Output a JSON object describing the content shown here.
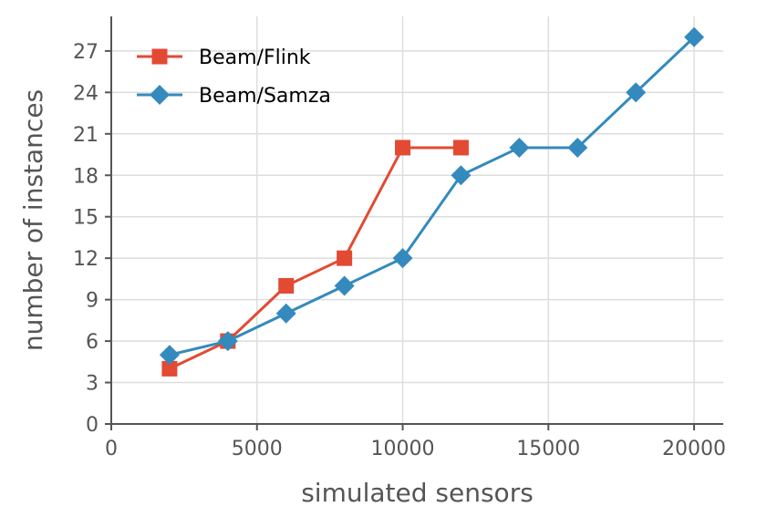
{
  "chart_data": {
    "type": "line",
    "title": "",
    "xlabel": "simulated sensors",
    "ylabel": "number of instances",
    "xlim": [
      0,
      21000
    ],
    "ylim": [
      0,
      29.5
    ],
    "xticks": [
      0,
      5000,
      10000,
      15000,
      20000
    ],
    "yticks": [
      0,
      3,
      6,
      9,
      12,
      15,
      18,
      21,
      24,
      27
    ],
    "grid": true,
    "legend_position": "top-left",
    "series": [
      {
        "name": "Beam/Flink",
        "color": "#e24a33",
        "marker": "square",
        "x": [
          2000,
          4000,
          6000,
          8000,
          10000,
          12000
        ],
        "y": [
          4,
          6,
          10,
          12,
          20,
          20
        ]
      },
      {
        "name": "Beam/Samza",
        "color": "#348abd",
        "marker": "diamond",
        "x": [
          2000,
          4000,
          6000,
          8000,
          10000,
          12000,
          14000,
          16000,
          18000,
          20000
        ],
        "y": [
          5,
          6,
          8,
          10,
          12,
          18,
          20,
          20,
          24,
          28
        ]
      }
    ]
  }
}
